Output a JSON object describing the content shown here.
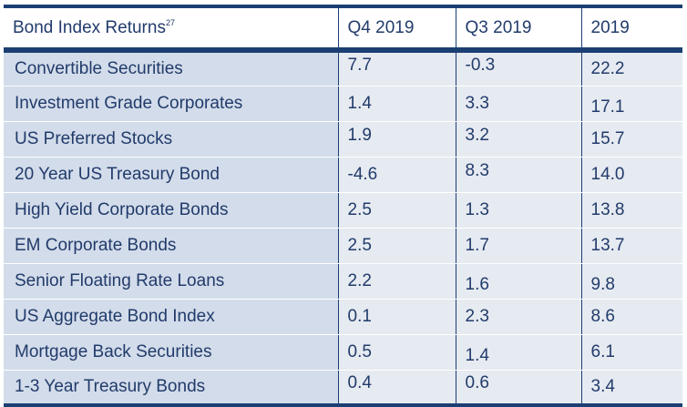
{
  "table": {
    "title": "Bond Index Returns",
    "footnote": "27",
    "headers": [
      "Q4 2019",
      "Q3 2019",
      "2019"
    ],
    "rows": [
      {
        "name": "Convertible Securities",
        "q4": "7.7",
        "q3": "-0.3",
        "y2019": "22.2"
      },
      {
        "name": "Investment Grade Corporates",
        "q4": "1.4",
        "q3": "3.3",
        "y2019": "17.1"
      },
      {
        "name": "US Preferred Stocks",
        "q4": "1.9",
        "q3": "3.2",
        "y2019": "15.7"
      },
      {
        "name": "20 Year US Treasury Bond",
        "q4": "-4.6",
        "q3": "8.3",
        "y2019": "14.0"
      },
      {
        "name": "High Yield Corporate Bonds",
        "q4": "2.5",
        "q3": "1.3",
        "y2019": "13.8"
      },
      {
        "name": "EM Corporate Bonds",
        "q4": "2.5",
        "q3": "1.7",
        "y2019": "13.7"
      },
      {
        "name": "Senior Floating Rate Loans",
        "q4": "2.2",
        "q3": "1.6",
        "y2019": "9.8"
      },
      {
        "name": "US Aggregate Bond Index",
        "q4": "0.1",
        "q3": "2.3",
        "y2019": "8.6"
      },
      {
        "name": "Mortgage Back Securities",
        "q4": "0.5",
        "q3": "1.4",
        "y2019": "6.1"
      },
      {
        "name": "1-3 Year Treasury Bonds",
        "q4": "0.4",
        "q3": "0.6",
        "y2019": "3.4"
      }
    ]
  }
}
